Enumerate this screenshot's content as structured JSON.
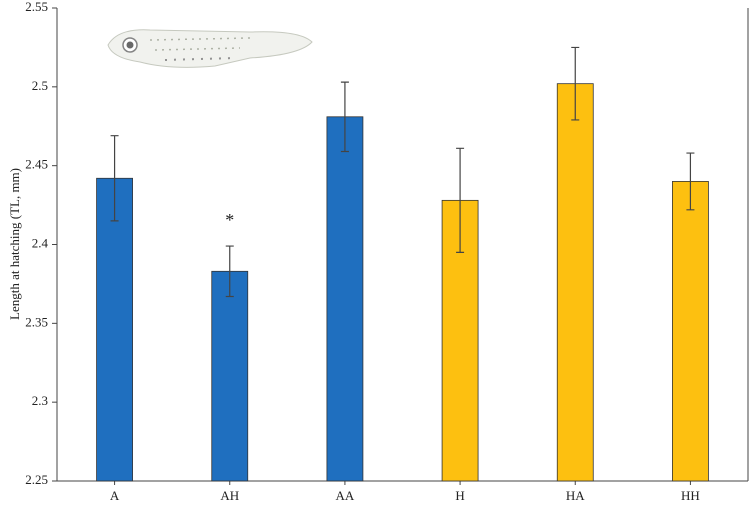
{
  "chart_data": {
    "type": "bar",
    "y_label": "Length at hatching (TL, mm)",
    "categories": [
      "A",
      "AH",
      "AA",
      "H",
      "HA",
      "HH"
    ],
    "values": [
      2.442,
      2.383,
      2.481,
      2.428,
      2.502,
      2.44
    ],
    "errors": [
      0.027,
      0.016,
      0.022,
      0.033,
      0.023,
      0.018
    ],
    "colors": [
      "#1f6fbf",
      "#1f6fbf",
      "#1f6fbf",
      "#fdc010",
      "#fdc010",
      "#fdc010"
    ],
    "annotation": "*",
    "annotation_category": 1,
    "ylim": [
      2.25,
      2.55
    ],
    "yticks": [
      2.25,
      2.3,
      2.35,
      2.4,
      2.45,
      2.5,
      2.55
    ]
  }
}
